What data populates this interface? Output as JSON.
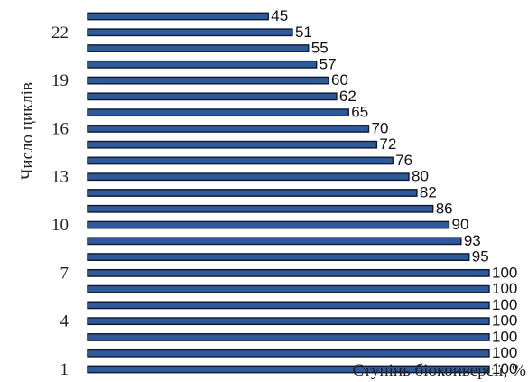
{
  "chart_data": {
    "type": "bar",
    "orientation": "horizontal",
    "categories": [
      "1",
      "2",
      "3",
      "4",
      "5",
      "6",
      "7",
      "8",
      "9",
      "10",
      "11",
      "12",
      "13",
      "14",
      "15",
      "16",
      "17",
      "18",
      "19",
      "20",
      "21",
      "22",
      "23"
    ],
    "values": [
      100,
      100,
      100,
      100,
      100,
      100,
      100,
      95,
      93,
      90,
      86,
      82,
      80,
      76,
      72,
      70,
      65,
      62,
      60,
      57,
      55,
      51,
      45
    ],
    "tick_labels": [
      "1",
      "4",
      "7",
      "10",
      "13",
      "16",
      "19",
      "22"
    ],
    "ylabel": "Число циклів",
    "xlabel": "Ступінь біоконверсії, %",
    "xlim": [
      0,
      100
    ],
    "grid": false,
    "legend": "none",
    "bar_color": "#2d5a9a"
  }
}
